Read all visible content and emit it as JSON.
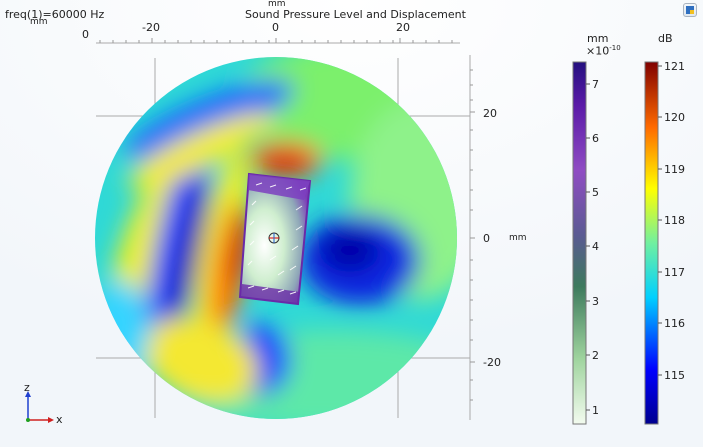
{
  "plot": {
    "title": "Sound Pressure Level and Displacement",
    "freq_label": "freq(1)=60000 Hz",
    "axis_unit": "mm",
    "x_top_unit": "mm",
    "x_ticks": [
      "-20",
      "0",
      "20"
    ],
    "y_ticks": [
      "20",
      "0",
      "-20"
    ],
    "x_origin_tick": "0",
    "triad": {
      "z": "z",
      "x": "x"
    }
  },
  "colorbars": {
    "displacement": {
      "unit": "mm",
      "scale": "×10",
      "exponent": "-10",
      "ticks": [
        "7",
        "6",
        "5",
        "4",
        "3",
        "2",
        "1"
      ]
    },
    "spl": {
      "unit": "dB",
      "ticks": [
        "121",
        "120",
        "119",
        "118",
        "117",
        "116",
        "115"
      ]
    }
  },
  "toolbar": {
    "icon": "graphics-toolbar-icon"
  }
}
